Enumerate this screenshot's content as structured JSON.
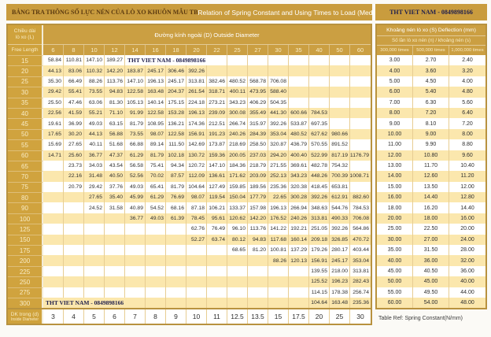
{
  "title_bar": {
    "title_vi": "BẢNG TRA THÔNG SỐ LỰC NÉN CỦA LÒ XO KHUÔN MẪU TB",
    "title_en": "Relation of Spring Constant and Using Times to Load (Medium Load)",
    "brand": "THT VIET NAM - 0849898166"
  },
  "theme": {
    "gold": "#cb9f42",
    "gold_dark": "#b8923f",
    "row_cream": "#fbe7ad",
    "header_text": "#f8ecc6",
    "watermark_color": "#22224e"
  },
  "main_table": {
    "row_header": {
      "line1": "Chiều dài",
      "line2": "lò xo (L)",
      "line3": "Free Length"
    },
    "col_group_header": "Đường kính ngoài (D) Outside Diameter",
    "columns": [
      "6",
      "8",
      "10",
      "12",
      "14",
      "16",
      "18",
      "20",
      "22",
      "25",
      "27",
      "30",
      "35",
      "40",
      "50",
      "60"
    ],
    "watermark_text": "THT VIET NAM - 0849898166",
    "rows": [
      {
        "label": "15",
        "values": [
          "58.84",
          "110.81",
          "147.10",
          "189.27",
          "",
          "",
          "",
          "",
          "",
          "",
          "",
          "",
          "",
          "",
          "",
          ""
        ],
        "wm": {
          "start": 4,
          "span": 5
        }
      },
      {
        "label": "20",
        "values": [
          "44.13",
          "83.06",
          "110.32",
          "142.20",
          "183.87",
          "245.17",
          "306.46",
          "392.26",
          "",
          "",
          "",
          "",
          "",
          "",
          "",
          ""
        ]
      },
      {
        "label": "25",
        "values": [
          "35.30",
          "66.49",
          "88.26",
          "113.76",
          "147.10",
          "196.13",
          "245.17",
          "313.81",
          "382.46",
          "480.52",
          "568.78",
          "706.08",
          "",
          "",
          "",
          ""
        ]
      },
      {
        "label": "30",
        "values": [
          "29.42",
          "55.41",
          "73.55",
          "94.83",
          "122.58",
          "163.48",
          "204.37",
          "261.54",
          "318.71",
          "400.11",
          "473.95",
          "588.40",
          "",
          "",
          "",
          ""
        ]
      },
      {
        "label": "35",
        "values": [
          "25.50",
          "47.46",
          "63.06",
          "81.30",
          "105.13",
          "140.14",
          "175.15",
          "224.18",
          "273.21",
          "343.23",
          "406.29",
          "504.35",
          "",
          "",
          "",
          ""
        ]
      },
      {
        "label": "40",
        "values": [
          "22.56",
          "41.59",
          "55.21",
          "71.10",
          "91.99",
          "122.58",
          "153.28",
          "196.13",
          "239.09",
          "300.08",
          "355.49",
          "441.30",
          "600.66",
          "784.53",
          "",
          ""
        ]
      },
      {
        "label": "45",
        "values": [
          "19.61",
          "36.99",
          "49.03",
          "63.15",
          "81.79",
          "108.95",
          "136.21",
          "174.36",
          "212.51",
          "266.74",
          "315.97",
          "392.26",
          "533.87",
          "697.35",
          "",
          ""
        ]
      },
      {
        "label": "50",
        "values": [
          "17.65",
          "30.20",
          "44.13",
          "56.88",
          "73.55",
          "98.07",
          "122.58",
          "156.91",
          "191.23",
          "240.26",
          "284.39",
          "353.04",
          "480.52",
          "627.62",
          "980.66",
          ""
        ]
      },
      {
        "label": "55",
        "values": [
          "15.69",
          "27.65",
          "40.11",
          "51.68",
          "66.88",
          "89.14",
          "111.50",
          "142.69",
          "173.87",
          "218.69",
          "258.50",
          "320.87",
          "436.79",
          "570.55",
          "891.52",
          ""
        ]
      },
      {
        "label": "60",
        "values": [
          "14.71",
          "25.60",
          "36.77",
          "47.37",
          "61.29",
          "81.79",
          "102.18",
          "130.72",
          "159.36",
          "200.05",
          "237.03",
          "294.20",
          "400.40",
          "522.99",
          "817.19",
          "1176.79"
        ]
      },
      {
        "label": "65",
        "values": [
          "",
          "23.73",
          "34.03",
          "43.54",
          "56.58",
          "75.41",
          "94.34",
          "120.72",
          "147.10",
          "184.36",
          "218.79",
          "271.55",
          "369.61",
          "482.78",
          "754.32",
          ""
        ]
      },
      {
        "label": "70",
        "values": [
          "",
          "22.16",
          "31.48",
          "40.50",
          "52.56",
          "70.02",
          "87.57",
          "112.09",
          "136.61",
          "171.62",
          "203.09",
          "252.13",
          "343.23",
          "448.26",
          "700.39",
          "1008.71"
        ]
      },
      {
        "label": "75",
        "values": [
          "",
          "20.79",
          "29.42",
          "37.76",
          "49.03",
          "65.41",
          "81.79",
          "104.64",
          "127.49",
          "159.85",
          "189.56",
          "235.36",
          "320.38",
          "418.45",
          "653.81",
          ""
        ]
      },
      {
        "label": "80",
        "values": [
          "",
          "",
          "27.65",
          "35.40",
          "45.99",
          "61.29",
          "76.69",
          "98.07",
          "119.54",
          "150.04",
          "177.79",
          "22.65",
          "300.28",
          "392.26",
          "612.91",
          "882.60"
        ]
      },
      {
        "label": "90",
        "values": [
          "",
          "",
          "24.52",
          "31.58",
          "40.89",
          "54.52",
          "68.16",
          "87.18",
          "106.21",
          "133.37",
          "157.98",
          "196.13",
          "266.94",
          "348.63",
          "544.76",
          "784.53"
        ]
      },
      {
        "label": "100",
        "values": [
          "",
          "",
          "",
          "",
          "36.77",
          "49.03",
          "61.39",
          "78.45",
          "95.61",
          "120.62",
          "142.20",
          "176.52",
          "240.26",
          "313.81",
          "490.33",
          "706.08"
        ]
      },
      {
        "label": "125",
        "values": [
          "",
          "",
          "",
          "",
          "",
          "",
          "",
          "62.76",
          "76.49",
          "96.10",
          "113.76",
          "141.22",
          "192.21",
          "251.05",
          "392.26",
          "564.86"
        ]
      },
      {
        "label": "150",
        "values": [
          "",
          "",
          "",
          "",
          "",
          "",
          "",
          "52.27",
          "63.74",
          "80.12",
          "94.83",
          "117.68",
          "160.14",
          "209.18",
          "326.85",
          "470.72"
        ]
      },
      {
        "label": "175",
        "values": [
          "",
          "",
          "",
          "",
          "",
          "",
          "",
          "",
          "",
          "68.65",
          "81.20",
          "100.81",
          "137.29",
          "179.26",
          "280.17",
          "403.44"
        ]
      },
      {
        "label": "200",
        "values": [
          "",
          "",
          "",
          "",
          "",
          "",
          "",
          "",
          "",
          "",
          "",
          "88.26",
          "120.13",
          "156.91",
          "245.17",
          "353.04"
        ]
      },
      {
        "label": "225",
        "values": [
          "",
          "",
          "",
          "",
          "",
          "",
          "",
          "",
          "",
          "",
          "",
          "",
          "",
          "139.55",
          "218.00",
          "313.81"
        ]
      },
      {
        "label": "250",
        "values": [
          "",
          "",
          "",
          "",
          "",
          "",
          "",
          "",
          "",
          "",
          "",
          "",
          "",
          "125.52",
          "196.23",
          "282.43"
        ]
      },
      {
        "label": "275",
        "values": [
          "",
          "",
          "",
          "",
          "",
          "",
          "",
          "",
          "",
          "",
          "",
          "",
          "",
          "114.15",
          "178.38",
          "256.74"
        ]
      },
      {
        "label": "300",
        "values": [
          "",
          "",
          "",
          "",
          "",
          "",
          "",
          "",
          "",
          "",
          "",
          "",
          "",
          "104.64",
          "163.48",
          "235.36"
        ],
        "wm": {
          "start": 0,
          "span": 5
        }
      }
    ],
    "inside_diameter": {
      "label_vi": "DK trong (d)",
      "label_en": "Inside Diameter",
      "values": [
        "3",
        "4",
        "5",
        "6",
        "7",
        "8",
        "9",
        "10",
        "11",
        "12.5",
        "13.5",
        "15",
        "17.5",
        "20",
        "25",
        "30"
      ]
    }
  },
  "right_panel": {
    "header": "Khoảng nén lò xo (S) Deflection (mm)",
    "subheader": "Số lần lò xo nén (n) / khoảng nén (s)",
    "columns": [
      "300,000 times",
      "500,000 times",
      "1,000,000 times"
    ],
    "rows": [
      [
        "3.00",
        "2.70",
        "2.40"
      ],
      [
        "4.00",
        "3.60",
        "3.20"
      ],
      [
        "5.00",
        "4.50",
        "4.00"
      ],
      [
        "6.00",
        "5.40",
        "4.80"
      ],
      [
        "7.00",
        "6.30",
        "5.60"
      ],
      [
        "8.00",
        "7.20",
        "6.40"
      ],
      [
        "9.00",
        "8.10",
        "7.20"
      ],
      [
        "10.00",
        "9.00",
        "8.00"
      ],
      [
        "11.00",
        "9.90",
        "8.80"
      ],
      [
        "12.00",
        "10.80",
        "9.60"
      ],
      [
        "13.00",
        "11.70",
        "10.40"
      ],
      [
        "14.00",
        "12.60",
        "11.20"
      ],
      [
        "15.00",
        "13.50",
        "12.00"
      ],
      [
        "16.00",
        "14.40",
        "12.80"
      ],
      [
        "18.00",
        "16.20",
        "14.40"
      ],
      [
        "20.00",
        "18.00",
        "16.00"
      ],
      [
        "25.00",
        "22.50",
        "20.00"
      ],
      [
        "30.00",
        "27.00",
        "24.00"
      ],
      [
        "35.00",
        "31.50",
        "28.00"
      ],
      [
        "40.00",
        "36.00",
        "32.00"
      ],
      [
        "45.00",
        "40.50",
        "36.00"
      ],
      [
        "50.00",
        "45.00",
        "40.00"
      ],
      [
        "55.00",
        "49.50",
        "44.00"
      ],
      [
        "60.00",
        "54.00",
        "48.00"
      ]
    ]
  },
  "footer_note": "Table Ref: Spring Constant(N/mm)"
}
